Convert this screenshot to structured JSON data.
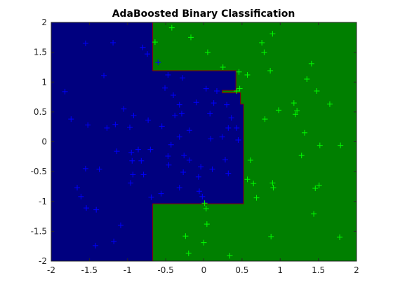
{
  "chart_data": {
    "type": "scatter",
    "title": "AdaBoosted Binary Classification",
    "xlim": [
      -2,
      2
    ],
    "ylim": [
      -2,
      2
    ],
    "xticks": [
      -2,
      -1.5,
      -1,
      -0.5,
      0,
      0.5,
      1,
      1.5,
      2
    ],
    "yticks": [
      -2,
      -1.5,
      -1,
      -0.5,
      0,
      0.5,
      1,
      1.5,
      2
    ],
    "background_color": "#007f00",
    "regions": [
      {
        "color": "#00007f",
        "edge_color": "#8b0000",
        "x": [
          -2,
          -0.67,
          -0.67,
          0.42,
          0.42,
          0.24,
          0.24,
          0.48,
          0.48,
          0.52,
          0.52,
          -0.67,
          -0.67,
          -2
        ],
        "y": [
          2,
          2,
          1.19,
          1.19,
          0.86,
          0.86,
          0.82,
          0.82,
          0.63,
          0.63,
          -1.04,
          -1.04,
          -2,
          -2
        ]
      }
    ],
    "series": [
      {
        "color": "#0000ff",
        "x": [
          -1.82,
          -1.55,
          -1.19,
          -1.31,
          -0.8,
          -0.74,
          -0.6,
          -0.47,
          -0.28,
          -0.51,
          -0.4,
          0.03,
          0.17,
          -1.74,
          -1.52,
          -1.27,
          -1.16,
          -1.05,
          -0.92,
          -0.97,
          -0.73,
          -0.55,
          -0.38,
          -0.29,
          -0.19,
          -0.32,
          -0.1,
          0.08,
          0.13,
          0.3,
          0.36,
          0.32,
          0.43,
          0.09,
          0.24,
          0.45,
          -0.32,
          -0.43,
          -0.7,
          -0.86,
          -0.95,
          -1.14,
          -1.55,
          -1.37,
          -0.94,
          -0.82,
          -0.47,
          -0.46,
          -0.26,
          -0.19,
          -0.04,
          0.11,
          0.28,
          0.32,
          -0.27,
          -0.07,
          -0.93,
          -0.79,
          -1.66,
          -1.61,
          -0.96,
          -0.56,
          -0.32,
          -0.06,
          -0.02,
          -1.54,
          -1.41,
          -1.09,
          -1.42,
          -1.18,
          -0.69
        ],
        "values": [
          0.84,
          1.65,
          1.66,
          1.11,
          1.58,
          1.47,
          1.33,
          1.12,
          1.07,
          0.9,
          0.78,
          0.89,
          0.85,
          0.38,
          0.28,
          0.23,
          0.29,
          0.55,
          0.44,
          0.24,
          0.36,
          0.26,
          0.44,
          0.47,
          0.19,
          0.62,
          0.66,
          0.47,
          0.65,
          0.62,
          0.4,
          0.23,
          0.23,
          0.05,
          0.08,
          0.03,
          0.08,
          -0.05,
          -0.13,
          -0.13,
          -0.18,
          -0.16,
          -0.45,
          -0.46,
          -0.32,
          -0.32,
          -0.24,
          -0.39,
          -0.23,
          -0.31,
          -0.42,
          -0.46,
          -0.3,
          -0.53,
          -0.51,
          -0.59,
          -0.55,
          -0.55,
          -0.77,
          -0.92,
          -0.69,
          -0.87,
          -0.77,
          -0.83,
          -0.92,
          -1.11,
          -1.14,
          -1.4,
          -1.74,
          -1.67,
          -0.93
        ]
      },
      {
        "color": "#00ff00",
        "x": [
          -0.42,
          -0.64,
          -0.17,
          0.05,
          0.25,
          0.46,
          0.57,
          0.76,
          0.79,
          0.9,
          0.87,
          1.41,
          1.35,
          1.48,
          0.47,
          0.43,
          0.98,
          1.18,
          1.22,
          1.2,
          0.8,
          1.65,
          1.32,
          1.52,
          1.79,
          1.28,
          0.61,
          0.57,
          0.65,
          0.9,
          0.91,
          1.51,
          1.46,
          0.69,
          0.01,
          0.03,
          0.04,
          -0.24,
          0,
          -0.2,
          0.34,
          0.88,
          1.44,
          1.78
        ],
        "values": [
          1.91,
          1.67,
          1.75,
          1.5,
          1.25,
          1.17,
          1.12,
          1.66,
          1.5,
          1.81,
          1.19,
          1.31,
          1.05,
          0.85,
          0.89,
          0.85,
          0.53,
          0.65,
          0.52,
          0.46,
          0.38,
          0.63,
          0.15,
          -0.06,
          -0.06,
          -0.23,
          -0.31,
          -0.63,
          -0.7,
          -0.69,
          -0.77,
          -0.73,
          -0.78,
          -0.94,
          -1.03,
          -1.12,
          -1.38,
          -1.58,
          -1.69,
          -1.87,
          -1.91,
          -1.59,
          -1.21,
          -1.6
        ]
      }
    ]
  }
}
